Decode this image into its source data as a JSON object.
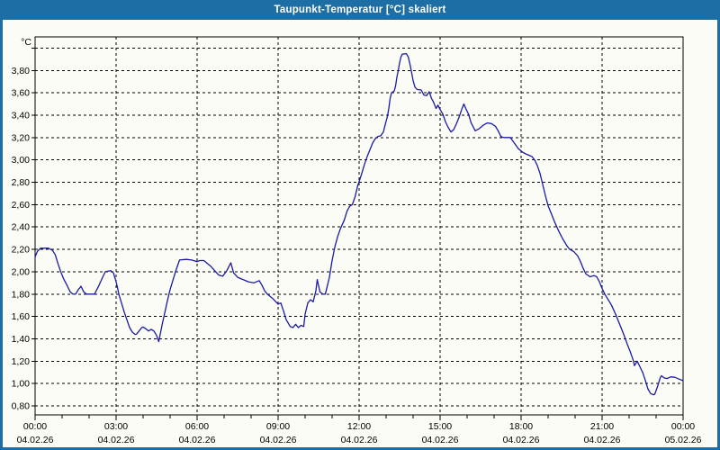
{
  "window": {
    "title": "Taupunkt-Temperatur [°C] skaliert",
    "titlebar_color": "#1c6ea4",
    "panel_color": "#fcfcf7"
  },
  "chart_data": {
    "type": "line",
    "title": "Taupunkt-Temperatur [°C] skaliert",
    "unit_label": "°C",
    "series_color": "#1a1aa6",
    "grid": "dashed-black",
    "legend": "none",
    "y_axis": {
      "min": 0.8,
      "max": 4.03,
      "tick_step": 0.2,
      "gridline_min": 0.8,
      "gridline_max": 4.0,
      "decimal_separator": ",",
      "labels": [
        "0,80",
        "1,00",
        "1,20",
        "1,40",
        "1,60",
        "1,80",
        "2,00",
        "2,20",
        "2,40",
        "2,60",
        "2,80",
        "3,00",
        "3,20",
        "3,40",
        "3,60",
        "3,80"
      ]
    },
    "x_axis": {
      "hours_span": 24,
      "major_tick_hours": 3,
      "minor_tick_hours": 1,
      "tick_labels": [
        {
          "time": "00:00",
          "date": "04.02.26"
        },
        {
          "time": "03:00",
          "date": "04.02.26"
        },
        {
          "time": "06:00",
          "date": "04.02.26"
        },
        {
          "time": "09:00",
          "date": "04.02.26"
        },
        {
          "time": "12:00",
          "date": "04.02.26"
        },
        {
          "time": "15:00",
          "date": "04.02.26"
        },
        {
          "time": "18:00",
          "date": "04.02.26"
        },
        {
          "time": "21:00",
          "date": "04.02.26"
        },
        {
          "time": "00:00",
          "date": "05.02.26"
        }
      ]
    },
    "points": [
      [
        0.0,
        2.13
      ],
      [
        0.08,
        2.18
      ],
      [
        0.2,
        2.21
      ],
      [
        0.5,
        2.21
      ],
      [
        0.65,
        2.19
      ],
      [
        0.75,
        2.15
      ],
      [
        0.85,
        2.07
      ],
      [
        0.95,
        2.0
      ],
      [
        1.05,
        1.94
      ],
      [
        1.2,
        1.87
      ],
      [
        1.3,
        1.82
      ],
      [
        1.4,
        1.8
      ],
      [
        1.5,
        1.8
      ],
      [
        1.6,
        1.84
      ],
      [
        1.7,
        1.87
      ],
      [
        1.8,
        1.82
      ],
      [
        1.9,
        1.8
      ],
      [
        2.2,
        1.8
      ],
      [
        2.35,
        1.87
      ],
      [
        2.5,
        1.95
      ],
      [
        2.6,
        2.0
      ],
      [
        2.8,
        2.01
      ],
      [
        2.9,
        1.99
      ],
      [
        3.0,
        1.91
      ],
      [
        3.05,
        1.86
      ],
      [
        3.1,
        1.8
      ],
      [
        3.2,
        1.72
      ],
      [
        3.3,
        1.64
      ],
      [
        3.4,
        1.57
      ],
      [
        3.5,
        1.5
      ],
      [
        3.6,
        1.46
      ],
      [
        3.7,
        1.44
      ],
      [
        3.75,
        1.44
      ],
      [
        3.85,
        1.47
      ],
      [
        3.95,
        1.5
      ],
      [
        4.0,
        1.505
      ],
      [
        4.1,
        1.49
      ],
      [
        4.2,
        1.47
      ],
      [
        4.3,
        1.485
      ],
      [
        4.4,
        1.47
      ],
      [
        4.5,
        1.43
      ],
      [
        4.58,
        1.375
      ],
      [
        4.7,
        1.52
      ],
      [
        4.8,
        1.63
      ],
      [
        4.9,
        1.74
      ],
      [
        5.0,
        1.84
      ],
      [
        5.1,
        1.92
      ],
      [
        5.2,
        2.0
      ],
      [
        5.35,
        2.105
      ],
      [
        5.6,
        2.11
      ],
      [
        5.8,
        2.105
      ],
      [
        6.0,
        2.09
      ],
      [
        6.1,
        2.1
      ],
      [
        6.25,
        2.1
      ],
      [
        6.35,
        2.08
      ],
      [
        6.5,
        2.05
      ],
      [
        6.65,
        2.01
      ],
      [
        6.8,
        1.97
      ],
      [
        6.95,
        1.96
      ],
      [
        7.1,
        2.01
      ],
      [
        7.25,
        2.08
      ],
      [
        7.35,
        1.99
      ],
      [
        7.5,
        1.95
      ],
      [
        7.7,
        1.93
      ],
      [
        7.9,
        1.91
      ],
      [
        8.1,
        1.9
      ],
      [
        8.3,
        1.92
      ],
      [
        8.4,
        1.88
      ],
      [
        8.5,
        1.83
      ],
      [
        8.6,
        1.8
      ],
      [
        8.8,
        1.76
      ],
      [
        9.0,
        1.71
      ],
      [
        9.1,
        1.72
      ],
      [
        9.2,
        1.65
      ],
      [
        9.3,
        1.57
      ],
      [
        9.45,
        1.51
      ],
      [
        9.55,
        1.5
      ],
      [
        9.65,
        1.53
      ],
      [
        9.75,
        1.5
      ],
      [
        9.85,
        1.52
      ],
      [
        9.95,
        1.51
      ],
      [
        10.0,
        1.62
      ],
      [
        10.1,
        1.72
      ],
      [
        10.2,
        1.75
      ],
      [
        10.3,
        1.73
      ],
      [
        10.4,
        1.83
      ],
      [
        10.45,
        1.93
      ],
      [
        10.55,
        1.82
      ],
      [
        10.65,
        1.8
      ],
      [
        10.75,
        1.8
      ],
      [
        10.9,
        1.95
      ],
      [
        11.0,
        2.1
      ],
      [
        11.1,
        2.22
      ],
      [
        11.2,
        2.31
      ],
      [
        11.3,
        2.38
      ],
      [
        11.45,
        2.46
      ],
      [
        11.55,
        2.54
      ],
      [
        11.65,
        2.585
      ],
      [
        11.75,
        2.6
      ],
      [
        11.85,
        2.67
      ],
      [
        11.95,
        2.77
      ],
      [
        12.0,
        2.805
      ],
      [
        12.1,
        2.88
      ],
      [
        12.2,
        2.96
      ],
      [
        12.3,
        3.03
      ],
      [
        12.4,
        3.09
      ],
      [
        12.5,
        3.15
      ],
      [
        12.6,
        3.19
      ],
      [
        12.7,
        3.21
      ],
      [
        12.8,
        3.215
      ],
      [
        12.9,
        3.25
      ],
      [
        12.95,
        3.3
      ],
      [
        13.05,
        3.39
      ],
      [
        13.1,
        3.46
      ],
      [
        13.15,
        3.55
      ],
      [
        13.2,
        3.6
      ],
      [
        13.3,
        3.615
      ],
      [
        13.35,
        3.66
      ],
      [
        13.4,
        3.74
      ],
      [
        13.45,
        3.8
      ],
      [
        13.5,
        3.87
      ],
      [
        13.55,
        3.92
      ],
      [
        13.6,
        3.945
      ],
      [
        13.75,
        3.95
      ],
      [
        13.82,
        3.92
      ],
      [
        13.88,
        3.86
      ],
      [
        13.93,
        3.8
      ],
      [
        14.0,
        3.71
      ],
      [
        14.07,
        3.65
      ],
      [
        14.15,
        3.63
      ],
      [
        14.3,
        3.625
      ],
      [
        14.4,
        3.58
      ],
      [
        14.5,
        3.575
      ],
      [
        14.6,
        3.61
      ],
      [
        14.68,
        3.55
      ],
      [
        14.75,
        3.52
      ],
      [
        14.85,
        3.46
      ],
      [
        14.92,
        3.49
      ],
      [
        15.0,
        3.45
      ],
      [
        15.1,
        3.41
      ],
      [
        15.2,
        3.34
      ],
      [
        15.3,
        3.29
      ],
      [
        15.4,
        3.25
      ],
      [
        15.5,
        3.27
      ],
      [
        15.6,
        3.32
      ],
      [
        15.7,
        3.38
      ],
      [
        15.8,
        3.45
      ],
      [
        15.88,
        3.5
      ],
      [
        15.95,
        3.46
      ],
      [
        16.05,
        3.41
      ],
      [
        16.15,
        3.33
      ],
      [
        16.3,
        3.26
      ],
      [
        16.45,
        3.28
      ],
      [
        16.6,
        3.31
      ],
      [
        16.75,
        3.33
      ],
      [
        16.9,
        3.325
      ],
      [
        17.05,
        3.3
      ],
      [
        17.15,
        3.26
      ],
      [
        17.25,
        3.21
      ],
      [
        17.35,
        3.2
      ],
      [
        17.6,
        3.2
      ],
      [
        17.75,
        3.15
      ],
      [
        17.9,
        3.1
      ],
      [
        18.05,
        3.07
      ],
      [
        18.2,
        3.05
      ],
      [
        18.4,
        3.03
      ],
      [
        18.5,
        3.0
      ],
      [
        18.6,
        2.95
      ],
      [
        18.7,
        2.88
      ],
      [
        18.8,
        2.78
      ],
      [
        18.9,
        2.68
      ],
      [
        19.0,
        2.59
      ],
      [
        19.1,
        2.53
      ],
      [
        19.25,
        2.44
      ],
      [
        19.4,
        2.36
      ],
      [
        19.55,
        2.29
      ],
      [
        19.7,
        2.23
      ],
      [
        19.8,
        2.2
      ],
      [
        19.95,
        2.18
      ],
      [
        20.1,
        2.14
      ],
      [
        20.2,
        2.09
      ],
      [
        20.3,
        2.03
      ],
      [
        20.4,
        1.98
      ],
      [
        20.55,
        1.955
      ],
      [
        20.7,
        1.965
      ],
      [
        20.8,
        1.955
      ],
      [
        20.9,
        1.91
      ],
      [
        21.0,
        1.85
      ],
      [
        21.1,
        1.8
      ],
      [
        21.2,
        1.76
      ],
      [
        21.35,
        1.7
      ],
      [
        21.5,
        1.62
      ],
      [
        21.65,
        1.53
      ],
      [
        21.8,
        1.44
      ],
      [
        21.95,
        1.34
      ],
      [
        22.05,
        1.28
      ],
      [
        22.15,
        1.21
      ],
      [
        22.2,
        1.16
      ],
      [
        22.3,
        1.2
      ],
      [
        22.4,
        1.15
      ],
      [
        22.5,
        1.1
      ],
      [
        22.6,
        1.03
      ],
      [
        22.7,
        0.95
      ],
      [
        22.8,
        0.91
      ],
      [
        22.9,
        0.9
      ],
      [
        22.95,
        0.905
      ],
      [
        23.05,
        0.97
      ],
      [
        23.15,
        1.05
      ],
      [
        23.2,
        1.07
      ],
      [
        23.3,
        1.05
      ],
      [
        23.4,
        1.045
      ],
      [
        23.55,
        1.06
      ],
      [
        23.7,
        1.055
      ],
      [
        23.85,
        1.04
      ],
      [
        24.0,
        1.025
      ]
    ]
  }
}
